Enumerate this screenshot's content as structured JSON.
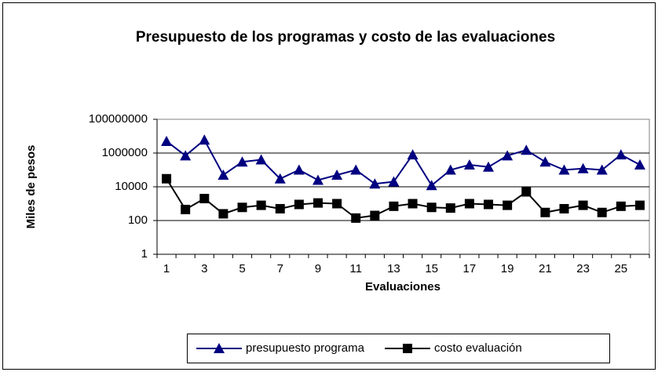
{
  "chart_data": {
    "type": "line",
    "title": "Presupuesto de los programas y costo de las evaluaciones",
    "x_label": "Evaluaciones",
    "y_label": "Miles de pesos",
    "categories": [
      1,
      null,
      3,
      null,
      5,
      null,
      7,
      null,
      9,
      null,
      11,
      null,
      13,
      null,
      15,
      null,
      17,
      null,
      19,
      null,
      21,
      null,
      23,
      null,
      25,
      null
    ],
    "series": [
      {
        "name": "presupuesto programa",
        "color": "#000080",
        "marker": "triangle",
        "values": [
          5000000,
          700000,
          6000000,
          50000,
          300000,
          400000,
          30000,
          100000,
          25000,
          50000,
          100000,
          15000,
          20000,
          800000,
          12000,
          100000,
          200000,
          150000,
          700000,
          1500000,
          300000,
          100000,
          120000,
          100000,
          800000,
          200000
        ]
      },
      {
        "name": "costo evaluación",
        "color": "#000000",
        "marker": "square",
        "values": [
          30000,
          450,
          2000,
          250,
          600,
          800,
          500,
          900,
          1100,
          1000,
          140,
          200,
          700,
          1000,
          600,
          550,
          1000,
          900,
          800,
          5000,
          300,
          500,
          800,
          300,
          700,
          800
        ]
      }
    ],
    "ylim": [
      1,
      100000000
    ],
    "yticks": [
      1,
      100,
      10000,
      1000000,
      100000000
    ],
    "log_y": true,
    "grid": true,
    "legend": "bottom"
  }
}
